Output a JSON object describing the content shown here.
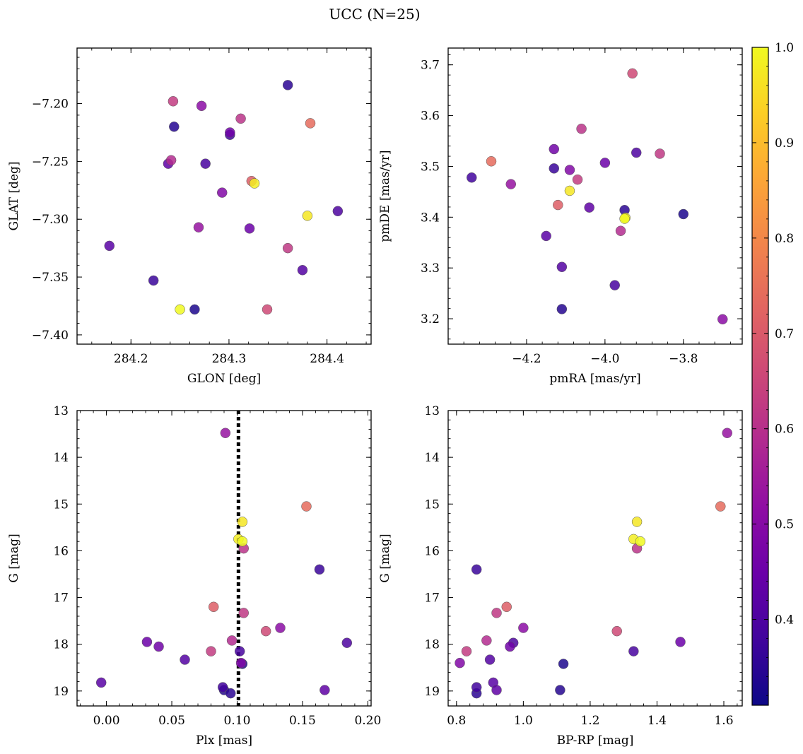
{
  "chart_data": {
    "title": "UCC (N=25)",
    "type": "scatter",
    "colormap": "plasma",
    "colorbar": {
      "min": 0.31,
      "max": 1.0,
      "ticks": [
        0.4,
        0.5,
        0.6,
        0.7,
        0.8,
        0.9,
        1.0
      ],
      "tick_labels": [
        "0.4",
        "0.5",
        "0.6",
        "0.7",
        "0.8",
        "0.9",
        "1.0"
      ]
    },
    "stars": [
      {
        "glon": 284.25,
        "glat": -7.378,
        "pmra": -3.95,
        "pmde": 3.397,
        "plx": 0.104,
        "g": 15.8,
        "bprp": 1.35,
        "prob": 1.0
      },
      {
        "glon": 284.326,
        "glat": -7.269,
        "pmra": -3.948,
        "pmde": 3.399,
        "plx": 0.101,
        "g": 15.75,
        "bprp": 1.33,
        "prob": 0.98
      },
      {
        "glon": 284.38,
        "glat": -7.297,
        "pmra": -4.09,
        "pmde": 3.452,
        "plx": 0.104,
        "g": 15.38,
        "bprp": 1.34,
        "prob": 0.97
      },
      {
        "glon": 284.383,
        "glat": -7.217,
        "pmra": -4.29,
        "pmde": 3.51,
        "plx": 0.153,
        "g": 15.05,
        "bprp": 1.59,
        "prob": 0.74
      },
      {
        "glon": 284.323,
        "glat": -7.267,
        "pmra": -4.12,
        "pmde": 3.424,
        "plx": 0.082,
        "g": 17.2,
        "bprp": 0.95,
        "prob": 0.71
      },
      {
        "glon": 284.339,
        "glat": -7.378,
        "pmra": -3.93,
        "pmde": 3.683,
        "plx": 0.122,
        "g": 17.72,
        "bprp": 1.28,
        "prob": 0.66
      },
      {
        "glon": 284.243,
        "glat": -7.198,
        "pmra": -4.07,
        "pmde": 3.474,
        "plx": 0.08,
        "g": 18.15,
        "bprp": 0.83,
        "prob": 0.63
      },
      {
        "glon": 284.36,
        "glat": -7.325,
        "pmra": -3.86,
        "pmde": 3.525,
        "plx": 0.105,
        "g": 17.33,
        "bprp": 0.92,
        "prob": 0.62
      },
      {
        "glon": 284.312,
        "glat": -7.213,
        "pmra": -4.06,
        "pmde": 3.574,
        "plx": 0.105,
        "g": 15.95,
        "bprp": 1.34,
        "prob": 0.61
      },
      {
        "glon": 284.241,
        "glat": -7.249,
        "pmra": -3.96,
        "pmde": 3.373,
        "plx": 0.096,
        "g": 17.92,
        "bprp": 0.89,
        "prob": 0.59
      },
      {
        "glon": 284.269,
        "glat": -7.307,
        "pmra": -4.24,
        "pmde": 3.465,
        "plx": 0.091,
        "g": 13.48,
        "bprp": 1.61,
        "prob": 0.53
      },
      {
        "glon": 284.272,
        "glat": -7.202,
        "pmra": -3.7,
        "pmde": 3.199,
        "plx": 0.133,
        "g": 17.65,
        "bprp": 1.0,
        "prob": 0.51
      },
      {
        "glon": 284.293,
        "glat": -7.277,
        "pmra": -4.09,
        "pmde": 3.493,
        "plx": 0.103,
        "g": 18.4,
        "bprp": 0.81,
        "prob": 0.49
      },
      {
        "glon": 284.301,
        "glat": -7.225,
        "pmra": -4.13,
        "pmde": 3.534,
        "plx": 0.04,
        "g": 18.05,
        "bprp": 0.96,
        "prob": 0.46
      },
      {
        "glon": 284.321,
        "glat": -7.308,
        "pmra": -4.0,
        "pmde": 3.507,
        "plx": 0.031,
        "g": 17.95,
        "bprp": 1.47,
        "prob": 0.45
      },
      {
        "glon": 284.238,
        "glat": -7.252,
        "pmra": -4.04,
        "pmde": 3.419,
        "plx": 0.167,
        "g": 18.98,
        "bprp": 0.92,
        "prob": 0.43
      },
      {
        "glon": 284.178,
        "glat": -7.323,
        "pmra": -4.15,
        "pmde": 3.363,
        "plx": -0.004,
        "g": 18.82,
        "bprp": 0.91,
        "prob": 0.42
      },
      {
        "glon": 284.375,
        "glat": -7.344,
        "pmra": -4.11,
        "pmde": 3.302,
        "plx": 0.06,
        "g": 18.33,
        "bprp": 0.9,
        "prob": 0.41
      },
      {
        "glon": 284.411,
        "glat": -7.293,
        "pmra": -3.92,
        "pmde": 3.527,
        "plx": 0.184,
        "g": 17.97,
        "bprp": 0.97,
        "prob": 0.4
      },
      {
        "glon": 284.276,
        "glat": -7.252,
        "pmra": -3.975,
        "pmde": 3.266,
        "plx": 0.102,
        "g": 18.15,
        "bprp": 1.33,
        "prob": 0.39
      },
      {
        "glon": 284.301,
        "glat": -7.227,
        "pmra": -4.34,
        "pmde": 3.478,
        "plx": 0.089,
        "g": 18.92,
        "bprp": 0.86,
        "prob": 0.38
      },
      {
        "glon": 284.223,
        "glat": -7.353,
        "pmra": -4.13,
        "pmde": 3.496,
        "plx": 0.163,
        "g": 16.4,
        "bprp": 0.86,
        "prob": 0.37
      },
      {
        "glon": 284.36,
        "glat": -7.184,
        "pmra": -3.95,
        "pmde": 3.414,
        "plx": 0.095,
        "g": 19.05,
        "bprp": 0.86,
        "prob": 0.35
      },
      {
        "glon": 284.244,
        "glat": -7.22,
        "pmra": -4.11,
        "pmde": 3.219,
        "plx": 0.09,
        "g": 18.98,
        "bprp": 1.11,
        "prob": 0.34
      },
      {
        "glon": 284.265,
        "glat": -7.378,
        "pmra": -3.8,
        "pmde": 3.406,
        "plx": 0.104,
        "g": 18.42,
        "bprp": 1.12,
        "prob": 0.33
      }
    ],
    "panels": [
      {
        "id": "glat-glon",
        "type": "scatter",
        "x": "glon",
        "y": "glat",
        "xlabel": "GLON [deg]",
        "ylabel": "GLAT [deg]",
        "xlim": [
          284.145,
          284.445
        ],
        "ylim": [
          -7.408,
          -7.152
        ],
        "invert_y": false,
        "xticks": [
          284.2,
          284.3,
          284.4
        ],
        "xtick_labels": [
          "284.2",
          "284.3",
          "284.4"
        ],
        "yticks": [
          -7.4,
          -7.35,
          -7.3,
          -7.25,
          -7.2
        ],
        "ytick_labels": [
          "−7.40",
          "−7.35",
          "−7.30",
          "−7.25",
          "−7.20"
        ]
      },
      {
        "id": "pm",
        "type": "scatter",
        "x": "pmra",
        "y": "pmde",
        "xlabel": "pmRA [mas/yr]",
        "ylabel": "pmDE [mas/yr]",
        "xlim": [
          -4.4,
          -3.65
        ],
        "ylim": [
          3.15,
          3.733
        ],
        "invert_y": false,
        "xticks": [
          -4.2,
          -4.0,
          -3.8
        ],
        "xtick_labels": [
          "−4.2",
          "−4.0",
          "−3.8"
        ],
        "yticks": [
          3.2,
          3.3,
          3.4,
          3.5,
          3.6,
          3.7
        ],
        "ytick_labels": [
          "3.2",
          "3.3",
          "3.4",
          "3.5",
          "3.6",
          "3.7"
        ]
      },
      {
        "id": "plx-g",
        "type": "scatter",
        "x": "plx",
        "y": "g",
        "xlabel": "Plx [mas]",
        "ylabel": "G [mag]",
        "xlim": [
          -0.0225,
          0.2025
        ],
        "ylim": [
          13.0,
          19.32
        ],
        "invert_y": true,
        "vline": 0.101,
        "xticks": [
          0.0,
          0.05,
          0.1,
          0.15,
          0.2
        ],
        "xtick_labels": [
          "0.00",
          "0.05",
          "0.10",
          "0.15",
          "0.20"
        ],
        "yticks": [
          13,
          14,
          15,
          16,
          17,
          18,
          19
        ],
        "ytick_labels": [
          "13",
          "14",
          "15",
          "16",
          "17",
          "18",
          "19"
        ]
      },
      {
        "id": "cmd",
        "type": "scatter",
        "x": "bprp",
        "y": "g",
        "xlabel": "BP-RP [mag]",
        "ylabel": "G [mag]",
        "xlim": [
          0.775,
          1.655
        ],
        "ylim": [
          13.0,
          19.32
        ],
        "invert_y": true,
        "xticks": [
          0.8,
          1.0,
          1.2,
          1.4,
          1.6
        ],
        "xtick_labels": [
          "0.8",
          "1.0",
          "1.2",
          "1.4",
          "1.6"
        ],
        "yticks": [
          13,
          14,
          15,
          16,
          17,
          18,
          19
        ],
        "ytick_labels": [
          "13",
          "14",
          "15",
          "16",
          "17",
          "18",
          "19"
        ]
      }
    ]
  }
}
